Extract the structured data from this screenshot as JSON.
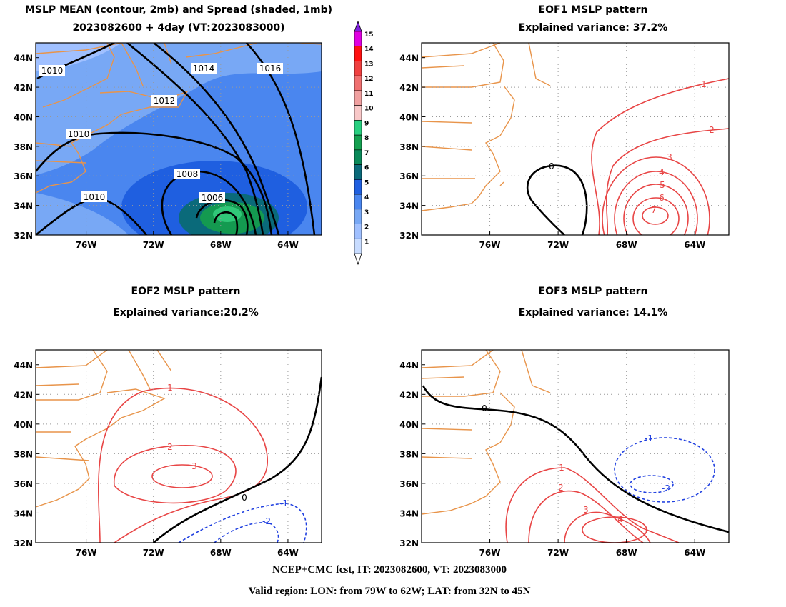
{
  "panels": [
    {
      "title": [
        "MSLP MEAN (contour, 2mb) and Spread (shaded, 1mb)",
        "2023082600 + 4day (VT:2023083000)"
      ],
      "xticks": [
        "76W",
        "72W",
        "68W",
        "64W"
      ],
      "yticks": [
        "44N",
        "42N",
        "40N",
        "38N",
        "36N",
        "34N",
        "32N"
      ],
      "contour_labels": [
        "1010",
        "1014",
        "1016",
        "1012",
        "1010",
        "1008",
        "1006",
        "1010"
      ]
    },
    {
      "title": [
        "EOF1 MSLP pattern",
        "Explained variance: 37.2%"
      ],
      "xticks": [
        "76W",
        "72W",
        "68W",
        "64W"
      ],
      "yticks": [
        "44N",
        "42N",
        "40N",
        "38N",
        "36N",
        "34N",
        "32N"
      ],
      "contour_labels": [
        "0",
        "1",
        "2",
        "3",
        "4",
        "5",
        "6",
        "7"
      ]
    },
    {
      "title": [
        "EOF2 MSLP pattern",
        "Explained variance:20.2%"
      ],
      "xticks": [
        "76W",
        "72W",
        "68W",
        "64W"
      ],
      "yticks": [
        "44N",
        "42N",
        "40N",
        "38N",
        "36N",
        "34N",
        "32N"
      ],
      "contour_labels": [
        "1",
        "2",
        "3",
        "0",
        "-1",
        "-2"
      ]
    },
    {
      "title": [
        "EOF3 MSLP pattern",
        "Explained variance: 14.1%"
      ],
      "xticks": [
        "76W",
        "72W",
        "68W",
        "64W"
      ],
      "yticks": [
        "44N",
        "42N",
        "40N",
        "38N",
        "36N",
        "34N",
        "32N"
      ],
      "contour_labels": [
        "0",
        "-1",
        "-2",
        "1",
        "2",
        "3",
        "4"
      ]
    }
  ],
  "colorbar": {
    "labels": [
      "15",
      "14",
      "13",
      "12",
      "11",
      "10",
      "9",
      "8",
      "7",
      "6",
      "5",
      "4",
      "3",
      "2",
      "1"
    ]
  },
  "footer": [
    "NCEP+CMC fcst, IT: 2023082600, VT: 2023083000",
    "Valid region: LON: from 79W to 62W; LAT: from 32N to 45N"
  ]
}
